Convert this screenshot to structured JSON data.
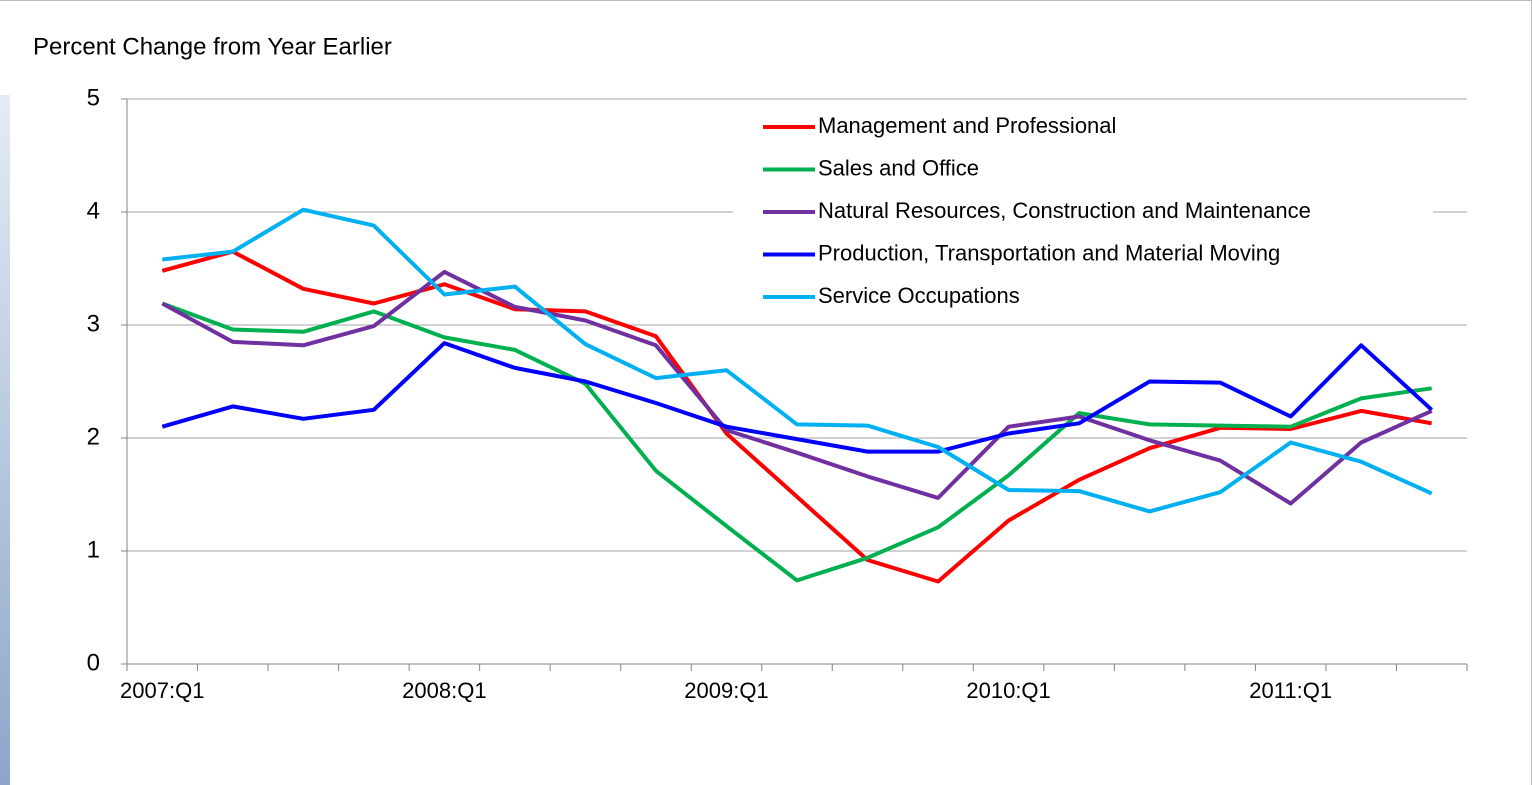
{
  "chart_data": {
    "type": "line",
    "ylabel": "Percent Change from Year Earlier",
    "categories": [
      "2007:Q1",
      null,
      null,
      null,
      "2008:Q1",
      null,
      null,
      null,
      "2009:Q1",
      null,
      null,
      null,
      "2010:Q1",
      null,
      null,
      null,
      "2011:Q1",
      null,
      null
    ],
    "ylim": [
      0,
      5
    ],
    "yticks": [
      0,
      1,
      2,
      3,
      4,
      5
    ],
    "grid": true,
    "legend": "upper right",
    "series": [
      {
        "name": "Management and Professional",
        "color": "#ff0000",
        "values": [
          3.48,
          3.65,
          3.32,
          3.19,
          3.36,
          3.14,
          3.12,
          2.9,
          2.04,
          1.48,
          0.92,
          0.73,
          1.27,
          1.63,
          1.91,
          2.09,
          2.08,
          2.24,
          2.13
        ]
      },
      {
        "name": "Sales and Office",
        "color": "#00b050",
        "values": [
          3.19,
          2.96,
          2.94,
          3.12,
          2.89,
          2.78,
          2.48,
          1.71,
          1.22,
          0.74,
          0.94,
          1.21,
          1.67,
          2.22,
          2.12,
          2.11,
          2.1,
          2.35,
          2.44
        ]
      },
      {
        "name": "Natural Resources, Construction and Maintenance",
        "color": "#7030a0",
        "values": [
          3.19,
          2.85,
          2.82,
          2.99,
          3.47,
          3.16,
          3.04,
          2.82,
          2.07,
          1.87,
          1.66,
          1.47,
          2.1,
          2.19,
          1.98,
          1.8,
          1.42,
          1.96,
          2.24
        ]
      },
      {
        "name": "Production, Transportation and Material Moving",
        "color": "#0000ff",
        "values": [
          2.1,
          2.28,
          2.17,
          2.25,
          2.84,
          2.62,
          2.5,
          2.31,
          2.1,
          1.99,
          1.88,
          1.88,
          2.04,
          2.13,
          2.5,
          2.49,
          2.19,
          2.82,
          2.25
        ]
      },
      {
        "name": "Service Occupations",
        "color": "#00b0f0",
        "values": [
          3.58,
          3.65,
          4.02,
          3.88,
          3.27,
          3.34,
          2.83,
          2.53,
          2.6,
          2.12,
          2.11,
          1.92,
          1.54,
          1.53,
          1.35,
          1.52,
          1.96,
          1.79,
          1.51
        ]
      }
    ]
  }
}
